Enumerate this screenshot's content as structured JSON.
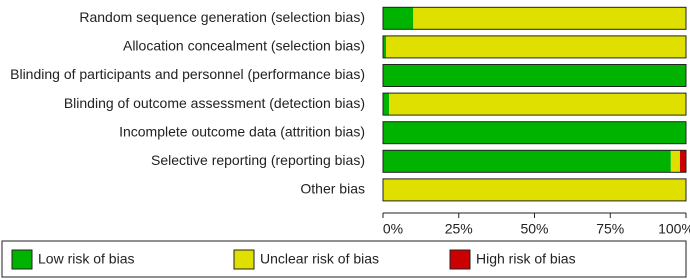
{
  "chart_data": {
    "type": "stacked-bar-horizontal",
    "categories": [
      "Random sequence generation (selection bias)",
      "Allocation concealment (selection bias)",
      "Blinding of participants and personnel (performance bias)",
      "Blinding of outcome assessment (detection bias)",
      "Incomplete outcome data (attrition bias)",
      "Selective reporting (reporting bias)",
      "Other bias"
    ],
    "series": [
      {
        "name": "Low risk of bias",
        "color": "#00b300",
        "values": [
          10,
          1,
          100,
          2,
          100,
          95,
          0
        ]
      },
      {
        "name": "Unclear risk of bias",
        "color": "#e0e000",
        "values": [
          90,
          99,
          0,
          98,
          0,
          3,
          100
        ]
      },
      {
        "name": "High risk of bias",
        "color": "#cc0000",
        "values": [
          0,
          0,
          0,
          0,
          0,
          2,
          0
        ]
      }
    ],
    "xlim": [
      0,
      100
    ],
    "xticks": [
      {
        "value": 0,
        "label": "0%"
      },
      {
        "value": 25,
        "label": "25%"
      },
      {
        "value": 50,
        "label": "50%"
      },
      {
        "value": 75,
        "label": "75%"
      },
      {
        "value": 100,
        "label": "100%"
      }
    ]
  }
}
